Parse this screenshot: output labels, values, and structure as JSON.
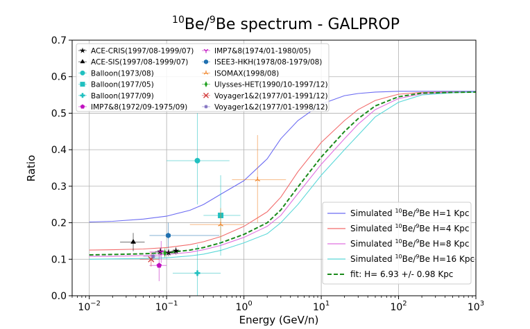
{
  "chart_data": {
    "type": "line",
    "title": "10Be/9Be spectrum - GALPROP",
    "title_parts": {
      "sup1": "10",
      "a": "Be/",
      "sup2": "9",
      "b": "Be spectrum - GALPROP"
    },
    "xlabel": "Energy (GeV/n)",
    "ylabel": "Ratio",
    "xscale": "log",
    "xlim": [
      0.006,
      1000
    ],
    "ylim": [
      0.0,
      0.7
    ],
    "grid": true,
    "x_ticks": [
      {
        "value": 0.01,
        "base": "10",
        "exp": "−2"
      },
      {
        "value": 0.1,
        "base": "10",
        "exp": "−1"
      },
      {
        "value": 1,
        "base": "10",
        "exp": "0"
      },
      {
        "value": 10,
        "base": "10",
        "exp": "1"
      },
      {
        "value": 100,
        "base": "10",
        "exp": "2"
      },
      {
        "value": 1000,
        "base": "10",
        "exp": "3"
      }
    ],
    "y_ticks": [
      "0.0",
      "0.1",
      "0.2",
      "0.3",
      "0.4",
      "0.5",
      "0.6",
      "0.7"
    ],
    "series": [
      {
        "name": "Simulated 10Be/9Be H=1 Kpc",
        "label_parts": [
          "Simulated ",
          "10",
          "Be/",
          "9",
          "Be H=1 Kpc"
        ],
        "color": "#6b6bf2",
        "style": "solid",
        "x": [
          0.01,
          0.02,
          0.05,
          0.1,
          0.2,
          0.3,
          0.5,
          1,
          2,
          3,
          5,
          10,
          20,
          30,
          50,
          100,
          200,
          500,
          1000
        ],
        "y": [
          0.202,
          0.204,
          0.21,
          0.218,
          0.234,
          0.25,
          0.278,
          0.315,
          0.375,
          0.43,
          0.48,
          0.525,
          0.548,
          0.554,
          0.558,
          0.56,
          0.56,
          0.56,
          0.56
        ]
      },
      {
        "name": "Simulated 10Be/9Be H=4 Kpc",
        "label_parts": [
          "Simulated ",
          "10",
          "Be/",
          "9",
          "Be H=4 Kpc"
        ],
        "color": "#f26b6b",
        "style": "solid",
        "x": [
          0.01,
          0.02,
          0.05,
          0.1,
          0.2,
          0.3,
          0.5,
          1,
          2,
          3,
          5,
          10,
          20,
          30,
          50,
          100,
          200,
          500,
          1000
        ],
        "y": [
          0.125,
          0.126,
          0.128,
          0.132,
          0.14,
          0.148,
          0.162,
          0.19,
          0.23,
          0.27,
          0.34,
          0.42,
          0.48,
          0.51,
          0.535,
          0.552,
          0.557,
          0.558,
          0.558
        ]
      },
      {
        "name": "Simulated 10Be/9Be H=8 Kpc",
        "label_parts": [
          "Simulated ",
          "10",
          "Be/",
          "9",
          "Be H=8 Kpc"
        ],
        "color": "#e070e0",
        "style": "solid",
        "x": [
          0.01,
          0.02,
          0.05,
          0.1,
          0.2,
          0.3,
          0.5,
          1,
          2,
          3,
          5,
          10,
          20,
          30,
          50,
          100,
          200,
          500,
          1000
        ],
        "y": [
          0.108,
          0.108,
          0.11,
          0.113,
          0.119,
          0.126,
          0.138,
          0.16,
          0.19,
          0.22,
          0.28,
          0.36,
          0.43,
          0.47,
          0.51,
          0.54,
          0.553,
          0.557,
          0.558
        ]
      },
      {
        "name": "Simulated 10Be/9Be H=16 Kpc",
        "label_parts": [
          "Simulated ",
          "10",
          "Be/",
          "9",
          "Be H=16 Kpc"
        ],
        "color": "#5ad8d8",
        "style": "solid",
        "x": [
          0.01,
          0.02,
          0.05,
          0.1,
          0.2,
          0.3,
          0.5,
          1,
          2,
          3,
          5,
          10,
          20,
          30,
          50,
          100,
          200,
          500,
          1000
        ],
        "y": [
          0.1,
          0.101,
          0.102,
          0.104,
          0.109,
          0.114,
          0.124,
          0.145,
          0.17,
          0.2,
          0.25,
          0.33,
          0.4,
          0.44,
          0.49,
          0.53,
          0.55,
          0.556,
          0.558
        ]
      },
      {
        "name": "fit: H= 6.93 +/-  0.98 Kpc",
        "label_parts": [
          "fit: H= 6.93 +/-  0.98 Kpc"
        ],
        "color": "#1a8a1a",
        "style": "dashed",
        "x": [
          0.01,
          0.02,
          0.05,
          0.1,
          0.2,
          0.3,
          0.5,
          1,
          2,
          3,
          5,
          10,
          20,
          30,
          50,
          100,
          200,
          500,
          1000
        ],
        "y": [
          0.112,
          0.113,
          0.115,
          0.118,
          0.125,
          0.132,
          0.145,
          0.168,
          0.2,
          0.235,
          0.298,
          0.38,
          0.45,
          0.485,
          0.52,
          0.545,
          0.555,
          0.557,
          0.558
        ]
      }
    ],
    "datasets": [
      {
        "name": "ACE-CRIS(1997/08-1999/07)",
        "marker": "star",
        "color": "#000000",
        "points": [
          {
            "x": 0.083,
            "y": 0.121,
            "xerr": [
              0.071,
              0.097
            ],
            "yerr": [
              0.111,
              0.131
            ]
          },
          {
            "x": 0.106,
            "y": 0.118,
            "xerr": [
              0.092,
              0.121
            ],
            "yerr": [
              0.108,
              0.128
            ]
          },
          {
            "x": 0.132,
            "y": 0.123,
            "xerr": [
              0.116,
              0.15
            ],
            "yerr": [
              0.113,
              0.133
            ]
          }
        ]
      },
      {
        "name": "ACE-SIS(1997/08-1999/07)",
        "marker": "triangle",
        "color": "#000000",
        "points": [
          {
            "x": 0.037,
            "y": 0.147,
            "xerr": [
              0.025,
              0.052
            ],
            "yerr": [
              0.122,
              0.172
            ]
          }
        ]
      },
      {
        "name": "Balloon(1973/08)",
        "marker": "circle",
        "color": "#20c0c0",
        "points": [
          {
            "x": 0.25,
            "y": 0.37,
            "xerr": [
              0.1,
              0.65
            ],
            "yerr": [
              0.25,
              0.5
            ]
          }
        ]
      },
      {
        "name": "Balloon(1977/05)",
        "marker": "square",
        "color": "#20c0c0",
        "points": [
          {
            "x": 0.5,
            "y": 0.22,
            "xerr": [
              0.3,
              0.9
            ],
            "yerr": [
              0.11,
              0.33
            ]
          }
        ]
      },
      {
        "name": "Balloon(1977/09)",
        "marker": "plus",
        "color": "#20c0c0",
        "points": [
          {
            "x": 0.25,
            "y": 0.062,
            "xerr": [
              0.12,
              0.5
            ],
            "yerr": [
              0.0,
              0.14
            ]
          }
        ]
      },
      {
        "name": "IMP7&8(1972/09-1975/09)",
        "marker": "pentagon",
        "color": "#c010c0",
        "points": [
          {
            "x": 0.08,
            "y": 0.083,
            "xerr": [
              0.06,
              0.1
            ],
            "yerr": [
              0.04,
              0.12
            ]
          }
        ]
      },
      {
        "name": "IMP7&8(1974/01-1980/05)",
        "marker": "tri_down",
        "color": "#c010c0",
        "points": [
          {
            "x": 0.085,
            "y": 0.12,
            "xerr": [
              0.06,
              0.11
            ],
            "yerr": [
              0.09,
              0.15
            ]
          }
        ]
      },
      {
        "name": "ISEE3-HKH(1978/08-1979/08)",
        "marker": "hexagon",
        "color": "#2070b0",
        "points": [
          {
            "x": 0.105,
            "y": 0.165,
            "xerr": [
              0.06,
              0.48
            ],
            "yerr": [
              0.13,
              0.2
            ]
          }
        ]
      },
      {
        "name": "ISOMAX(1998/08)",
        "marker": "tri_up",
        "color": "#f08020",
        "points": [
          {
            "x": 0.5,
            "y": 0.195,
            "xerr": [
              0.2,
              1.0
            ],
            "yerr": [
              0.15,
              0.24
            ]
          },
          {
            "x": 1.5,
            "y": 0.318,
            "xerr": [
              0.7,
              3.5
            ],
            "yerr": [
              0.2,
              0.44
            ]
          }
        ]
      },
      {
        "name": "Ulysses-HET(1990/10-1997/12)",
        "marker": "thin_diamond",
        "color": "#20a020",
        "points": [
          {
            "x": 0.095,
            "y": 0.117,
            "xerr": [
              0.07,
              0.13
            ],
            "yerr": [
              0.105,
              0.13
            ]
          }
        ]
      },
      {
        "name": "Voyager1&2(1977/01-1991/12)",
        "marker": "x",
        "color": "#d03030",
        "points": [
          {
            "x": 0.063,
            "y": 0.1,
            "xerr": [
              0.045,
              0.08
            ],
            "yerr": [
              0.08,
              0.12
            ]
          }
        ]
      },
      {
        "name": "Voyager1&2(1977/01-1998/12)",
        "marker": "star8",
        "color": "#8070c0",
        "points": [
          {
            "x": 0.067,
            "y": 0.108,
            "xerr": [
              0.05,
              0.085
            ],
            "yerr": [
              0.095,
              0.12
            ]
          }
        ]
      }
    ]
  }
}
